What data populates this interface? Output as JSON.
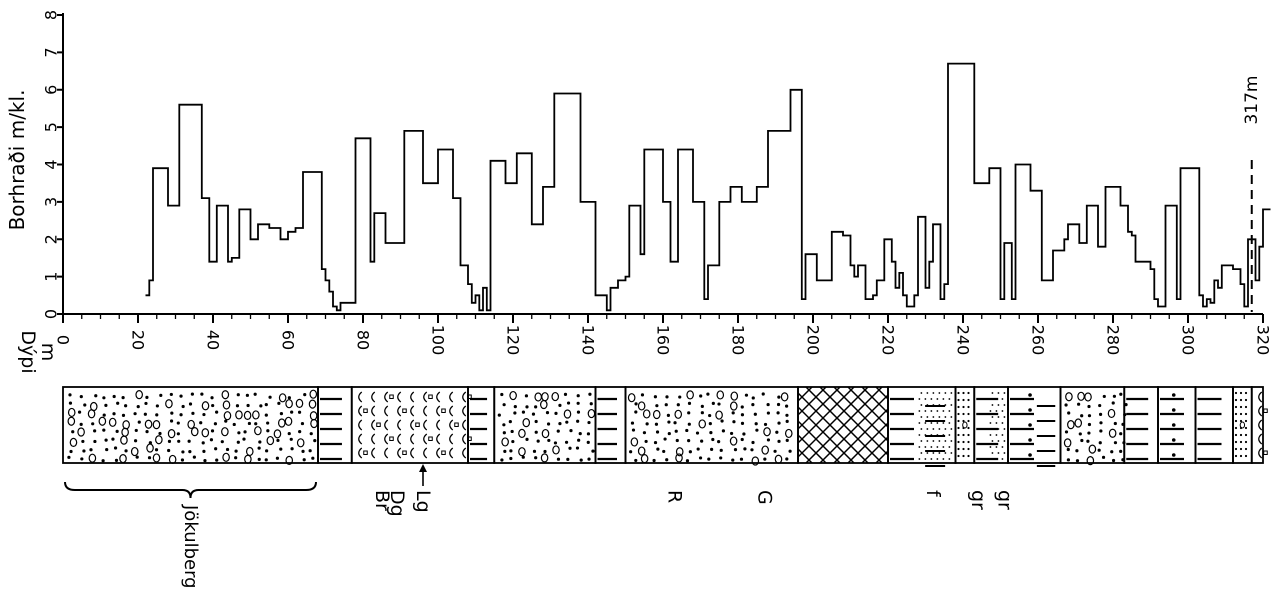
{
  "chart_data": {
    "type": "line",
    "step": true,
    "xlabel": "Dýpi m",
    "xlabel_line1": "Dýpi",
    "xlabel_line2": "m",
    "ylabel": "Borhraði m/kl.",
    "xlim": [
      0,
      320
    ],
    "ylim": [
      0,
      8
    ],
    "x_ticks": [
      "0",
      "20",
      "40",
      "60",
      "80",
      "100",
      "120",
      "140",
      "160",
      "180",
      "200",
      "220",
      "240",
      "260",
      "280",
      "300",
      "320"
    ],
    "y_ticks": [
      "0",
      "1",
      "2",
      "3",
      "4",
      "5",
      "6",
      "7",
      "8"
    ],
    "annotation": "317m",
    "annotation_x": 317,
    "series": [
      {
        "points": [
          [
            22,
            0.5
          ],
          [
            23,
            0.9
          ],
          [
            24,
            3.9
          ],
          [
            28,
            2.9
          ],
          [
            31,
            5.6
          ],
          [
            37,
            3.1
          ],
          [
            39,
            1.4
          ],
          [
            41,
            2.9
          ],
          [
            44,
            1.4
          ],
          [
            45,
            1.5
          ],
          [
            47,
            2.8
          ],
          [
            50,
            2.0
          ],
          [
            52,
            2.4
          ],
          [
            55,
            2.3
          ],
          [
            58,
            2.0
          ],
          [
            60,
            2.2
          ],
          [
            62,
            2.3
          ],
          [
            64,
            3.8
          ],
          [
            69,
            1.2
          ],
          [
            70,
            0.9
          ],
          [
            71,
            0.6
          ],
          [
            72,
            0.2
          ],
          [
            73,
            0.1
          ],
          [
            74,
            0.3
          ],
          [
            78,
            4.7
          ],
          [
            82,
            1.4
          ],
          [
            83,
            2.7
          ],
          [
            86,
            1.9
          ],
          [
            91,
            4.9
          ],
          [
            96,
            3.5
          ],
          [
            100,
            4.4
          ],
          [
            104,
            3.1
          ],
          [
            106,
            1.3
          ],
          [
            108,
            0.8
          ],
          [
            109,
            0.3
          ],
          [
            110,
            0.5
          ],
          [
            111,
            0.1
          ],
          [
            112,
            0.7
          ],
          [
            113,
            0.1
          ],
          [
            114,
            4.1
          ],
          [
            118,
            3.5
          ],
          [
            121,
            4.3
          ],
          [
            125,
            2.4
          ],
          [
            128,
            3.4
          ],
          [
            131,
            5.9
          ],
          [
            138,
            3.0
          ],
          [
            142,
            0.5
          ],
          [
            145,
            0.1
          ],
          [
            146,
            0.7
          ],
          [
            148,
            0.9
          ],
          [
            150,
            1.0
          ],
          [
            151,
            2.9
          ],
          [
            154,
            1.6
          ],
          [
            155,
            4.4
          ],
          [
            160,
            3.0
          ],
          [
            162,
            1.4
          ],
          [
            164,
            4.4
          ],
          [
            168,
            3.0
          ],
          [
            171,
            0.4
          ],
          [
            172,
            1.3
          ],
          [
            175,
            3.0
          ],
          [
            178,
            3.4
          ],
          [
            181,
            3.0
          ],
          [
            185,
            3.4
          ],
          [
            188,
            4.9
          ],
          [
            194,
            6.0
          ],
          [
            197,
            0.4
          ],
          [
            198,
            1.6
          ],
          [
            201,
            0.9
          ],
          [
            205,
            2.2
          ],
          [
            208,
            2.1
          ],
          [
            210,
            1.3
          ],
          [
            211,
            1.0
          ],
          [
            212,
            1.3
          ],
          [
            214,
            0.4
          ],
          [
            216,
            0.5
          ],
          [
            217,
            0.9
          ],
          [
            219,
            2.0
          ],
          [
            221,
            1.4
          ],
          [
            222,
            0.7
          ],
          [
            223,
            1.1
          ],
          [
            224,
            0.5
          ],
          [
            225,
            0.2
          ],
          [
            227,
            0.5
          ],
          [
            228,
            2.6
          ],
          [
            230,
            0.7
          ],
          [
            231,
            1.4
          ],
          [
            232,
            2.4
          ],
          [
            234,
            0.4
          ],
          [
            235,
            0.8
          ],
          [
            236,
            6.7
          ],
          [
            243,
            3.5
          ],
          [
            247,
            3.9
          ],
          [
            250,
            0.4
          ],
          [
            251,
            1.9
          ],
          [
            253,
            0.4
          ],
          [
            254,
            4.0
          ],
          [
            258,
            3.3
          ],
          [
            261,
            0.9
          ],
          [
            264,
            1.7
          ],
          [
            267,
            2.0
          ],
          [
            268,
            2.4
          ],
          [
            271,
            1.9
          ],
          [
            273,
            2.9
          ],
          [
            276,
            1.8
          ],
          [
            278,
            3.4
          ],
          [
            282,
            2.9
          ],
          [
            284,
            2.2
          ],
          [
            285,
            2.1
          ],
          [
            286,
            1.4
          ],
          [
            290,
            1.2
          ],
          [
            291,
            0.4
          ],
          [
            292,
            0.2
          ],
          [
            294,
            2.9
          ],
          [
            297,
            0.4
          ],
          [
            298,
            3.9
          ],
          [
            303,
            0.5
          ],
          [
            304,
            0.2
          ],
          [
            305,
            0.4
          ],
          [
            306,
            0.3
          ],
          [
            307,
            0.9
          ],
          [
            308,
            0.7
          ],
          [
            309,
            1.3
          ],
          [
            312,
            1.2
          ],
          [
            314,
            0.8
          ],
          [
            315,
            0.2
          ],
          [
            316,
            2.0
          ],
          [
            318,
            0.9
          ],
          [
            319,
            1.8
          ],
          [
            320,
            2.8
          ],
          [
            322,
            2.8
          ]
        ]
      }
    ]
  },
  "lithology": {
    "intervals": [
      {
        "from": 0,
        "to": 68,
        "pattern": "conglomerate"
      },
      {
        "from": 68,
        "to": 77,
        "pattern": "bars"
      },
      {
        "from": 77,
        "to": 108,
        "pattern": "arcs"
      },
      {
        "from": 108,
        "to": 115,
        "pattern": "bars"
      },
      {
        "from": 115,
        "to": 142,
        "pattern": "conglomerate"
      },
      {
        "from": 142,
        "to": 150,
        "pattern": "bars"
      },
      {
        "from": 150,
        "to": 196,
        "pattern": "conglomerate"
      },
      {
        "from": 196,
        "to": 220,
        "pattern": "crosshatch"
      },
      {
        "from": 220,
        "to": 238,
        "pattern": "bars_dots"
      },
      {
        "from": 238,
        "to": 243,
        "pattern": "dots_dense"
      },
      {
        "from": 243,
        "to": 252,
        "pattern": "bars_dots"
      },
      {
        "from": 252,
        "to": 266,
        "pattern": "bars_dot"
      },
      {
        "from": 266,
        "to": 283,
        "pattern": "conglomerate"
      },
      {
        "from": 283,
        "to": 292,
        "pattern": "bars"
      },
      {
        "from": 292,
        "to": 302,
        "pattern": "bars_dot"
      },
      {
        "from": 302,
        "to": 312,
        "pattern": "bars"
      },
      {
        "from": 312,
        "to": 317,
        "pattern": "dots_dense"
      },
      {
        "from": 317,
        "to": 320,
        "pattern": "arcs"
      }
    ],
    "labels": [
      {
        "text": "Jökulberg",
        "x": 34
      },
      {
        "text": "Br",
        "x": 85
      },
      {
        "text": "Dg",
        "x": 89
      },
      {
        "text": "Lg",
        "x": 96
      },
      {
        "text": "R",
        "x": 163
      },
      {
        "text": "G",
        "x": 187
      },
      {
        "text": "f",
        "x": 232
      },
      {
        "text": "gr",
        "x": 244
      },
      {
        "text": "gr",
        "x": 251
      }
    ]
  }
}
